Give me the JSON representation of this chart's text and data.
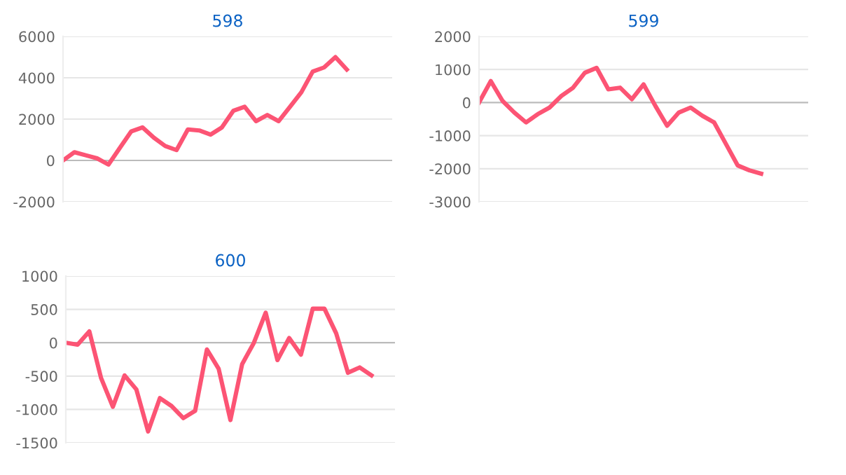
{
  "chart_data": [
    {
      "type": "line",
      "title": "598",
      "categories": [
        null,
        null,
        null,
        null,
        null,
        null,
        null,
        null,
        null,
        null,
        null,
        null,
        null,
        null,
        null,
        null,
        null,
        null,
        null,
        null,
        null,
        null,
        null,
        null,
        null,
        null,
        null,
        null,
        null,
        null
      ],
      "series": [
        {
          "color": "#fc5474",
          "values": [
            0,
            400,
            250,
            100,
            -200,
            600,
            1400,
            1600,
            1100,
            700,
            500,
            1500,
            1450,
            1250,
            1600,
            2400,
            2600,
            1900,
            2200,
            1900,
            2600,
            3300,
            4300,
            4500,
            5000,
            4400,
            null,
            null,
            null,
            null
          ]
        }
      ],
      "ylim": [
        -2000,
        6000
      ],
      "yticks": [
        -2000,
        0,
        2000,
        4000,
        6000
      ],
      "grid": "y",
      "tick_labels": "y",
      "marker": "none",
      "line_style": "solid"
    },
    {
      "type": "line",
      "title": "599",
      "categories": [
        null,
        null,
        null,
        null,
        null,
        null,
        null,
        null,
        null,
        null,
        null,
        null,
        null,
        null,
        null,
        null,
        null,
        null,
        null,
        null,
        null,
        null,
        null,
        null,
        null,
        null,
        null,
        null,
        null
      ],
      "series": [
        {
          "color": "#fc5474",
          "values": [
            0,
            650,
            50,
            -300,
            -600,
            -350,
            -150,
            200,
            450,
            900,
            1050,
            400,
            450,
            100,
            550,
            -100,
            -700,
            -300,
            -150,
            -400,
            -600,
            -1250,
            -1900,
            -2050,
            -2150,
            null,
            null,
            null,
            null
          ]
        }
      ],
      "ylim": [
        -3000,
        2000
      ],
      "yticks": [
        -3000,
        -2000,
        -1000,
        0,
        1000,
        2000
      ],
      "grid": "y",
      "tick_labels": "y",
      "marker": "none",
      "line_style": "solid"
    },
    {
      "type": "line",
      "title": "600",
      "categories": [
        null,
        null,
        null,
        null,
        null,
        null,
        null,
        null,
        null,
        null,
        null,
        null,
        null,
        null,
        null,
        null,
        null,
        null,
        null,
        null,
        null,
        null,
        null,
        null,
        null,
        null,
        null,
        null,
        null
      ],
      "series": [
        {
          "color": "#fc5474",
          "values": [
            0,
            -30,
            170,
            -530,
            -960,
            -490,
            -700,
            -1330,
            -830,
            -950,
            -1130,
            -1020,
            -100,
            -390,
            -1160,
            -320,
            0,
            450,
            -260,
            70,
            -180,
            510,
            510,
            140,
            -450,
            -370,
            -490,
            null,
            null
          ]
        }
      ],
      "ylim": [
        -1500,
        1000
      ],
      "yticks": [
        -1500,
        -1000,
        -500,
        0,
        500,
        1000
      ],
      "grid": "y",
      "tick_labels": "y",
      "marker": "none",
      "line_style": "solid"
    }
  ]
}
